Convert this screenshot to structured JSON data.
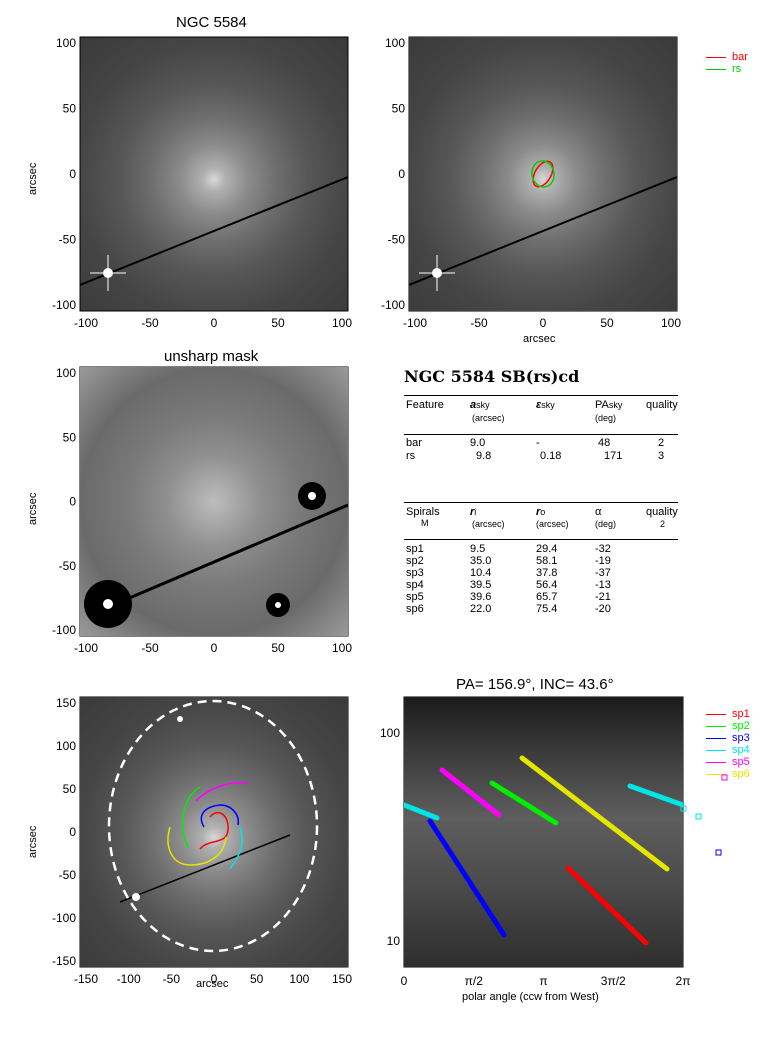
{
  "panels": {
    "p1": {
      "title": "NGC 5584",
      "ylabel": "arcsec"
    },
    "p2": {
      "xlabel": "arcsec"
    },
    "p3": {
      "title": "unsharp mask",
      "ylabel": "arcsec"
    },
    "p5": {
      "ylabel": "arcsec",
      "xlabel": "arcsec"
    },
    "p6": {
      "title": "PA= 156.9°, INC=  43.6°",
      "xlabel": "polar angle (ccw from West)"
    }
  },
  "ticks": {
    "pm100": [
      "-100",
      "-50",
      "0",
      "50",
      "100"
    ],
    "pm150": [
      "-150",
      "-100",
      "-50",
      "0",
      "50",
      "100",
      "150"
    ],
    "polar_x": [
      "0",
      "π/2",
      "π",
      "3π/2",
      "2π"
    ],
    "polar_y": [
      "100",
      "10"
    ]
  },
  "legend_top": [
    {
      "label": "bar",
      "color": "#ff0000"
    },
    {
      "label": "rs",
      "color": "#00cc00"
    }
  ],
  "legend_bottom": [
    {
      "label": "sp1",
      "color": "#ff0000"
    },
    {
      "label": "sp2",
      "color": "#00ee00"
    },
    {
      "label": "sp3",
      "color": "#0000ff"
    },
    {
      "label": "sp4",
      "color": "#00e5e5"
    },
    {
      "label": "sp5",
      "color": "#ff00ff"
    },
    {
      "label": "sp6",
      "color": "#e5e500"
    }
  ],
  "table": {
    "title": "NGC 5584  SB(rs)cd",
    "features_header": {
      "c1": "Feature",
      "c2": "a",
      "c2sub": "sky",
      "c2unit": "(arcsec)",
      "c3": "ε",
      "c3sub": "sky",
      "c4": "PA",
      "c4sub": "sky",
      "c4unit": "(deg)",
      "c5": "quality"
    },
    "features": [
      {
        "name": "bar",
        "a": "9.0",
        "eps": "-",
        "pa": "48",
        "q": "2"
      },
      {
        "name": "rs",
        "a": "9.8",
        "eps": "0.18",
        "pa": "171",
        "q": "3"
      }
    ],
    "spirals_header": {
      "c1": "Spirals",
      "c1b": "M",
      "c2": "r",
      "c2sub": "i",
      "c2unit": "(arcsec)",
      "c3": "r",
      "c3sub": "o",
      "c3unit": "(arcsec)",
      "c4": "α",
      "c4unit": "(deg)",
      "c5": "quality",
      "c5b": "2"
    },
    "spirals": [
      {
        "name": "sp1",
        "ri": "9.5",
        "ro": "29.4",
        "alpha": "-32"
      },
      {
        "name": "sp2",
        "ri": "35.0",
        "ro": "58.1",
        "alpha": "-19"
      },
      {
        "name": "sp3",
        "ri": "10.4",
        "ro": "37.8",
        "alpha": "-37"
      },
      {
        "name": "sp4",
        "ri": "39.5",
        "ro": "56.4",
        "alpha": "-13"
      },
      {
        "name": "sp5",
        "ri": "39.6",
        "ro": "65.7",
        "alpha": "-21"
      },
      {
        "name": "sp6",
        "ri": "22.0",
        "ro": "75.4",
        "alpha": "-20"
      }
    ]
  }
}
